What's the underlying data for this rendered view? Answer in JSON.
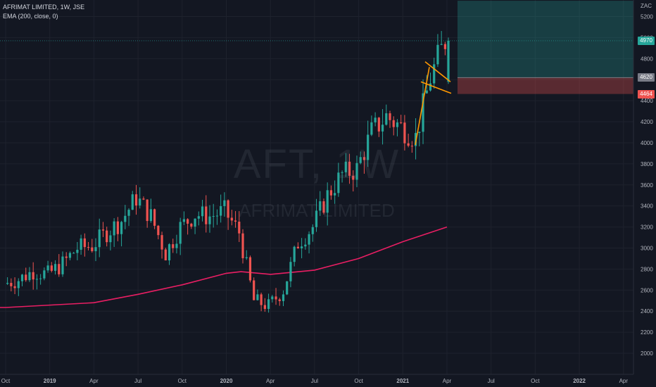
{
  "legend": {
    "symbol": "AFRIMAT LIMITED, 1W, JSE",
    "indicator": "EMA (200, close, 0)"
  },
  "watermark": {
    "ticker": "AFT, 1W",
    "name": "AFRIMAT LIMITED"
  },
  "currency": "ZAC",
  "badges": [
    {
      "label": "4970",
      "color": "#26a69a"
    },
    {
      "label": "4620",
      "color": "#787b86"
    },
    {
      "label": "4464",
      "color": "#ef5350"
    }
  ],
  "colors": {
    "up": "#26a69a",
    "down": "#ef5350",
    "ema": "#e91e63",
    "trendline": "#ff9800",
    "target_zone": "#26a69a",
    "stop_zone": "#ef5350"
  },
  "chart_data": {
    "type": "candlestick",
    "interval": "1W",
    "ylim": [
      1850,
      5350
    ],
    "y_ticks": [
      2000,
      2200,
      2400,
      2600,
      2800,
      3000,
      3200,
      3400,
      3600,
      3800,
      4000,
      4200,
      4400,
      4600,
      4800,
      5000,
      5200
    ],
    "x_ticks": [
      "Oct",
      "2019",
      "Apr",
      "Jul",
      "Oct",
      "2020",
      "Apr",
      "Jul",
      "Oct",
      "2021",
      "Apr",
      "Jul",
      "Oct",
      "2022",
      "Apr"
    ],
    "close_series": [
      {
        "date": "2018-10",
        "close": 2660
      },
      {
        "date": "2018-11",
        "close": 2700
      },
      {
        "date": "2018-12",
        "close": 2780
      },
      {
        "date": "2019-01",
        "close": 2750
      },
      {
        "date": "2019-02",
        "close": 2850
      },
      {
        "date": "2019-03",
        "close": 3000
      },
      {
        "date": "2019-04",
        "close": 3020
      },
      {
        "date": "2019-05",
        "close": 3150
      },
      {
        "date": "2019-06",
        "close": 3260
      },
      {
        "date": "2019-07",
        "close": 3480
      },
      {
        "date": "2019-08",
        "close": 3300
      },
      {
        "date": "2019-09",
        "close": 2950
      },
      {
        "date": "2019-10",
        "close": 3200
      },
      {
        "date": "2019-11",
        "close": 3320
      },
      {
        "date": "2019-12",
        "close": 3300
      },
      {
        "date": "2020-01",
        "close": 3350
      },
      {
        "date": "2020-02",
        "close": 3150
      },
      {
        "date": "2020-03",
        "close": 2500
      },
      {
        "date": "2020-04",
        "close": 2450
      },
      {
        "date": "2020-05",
        "close": 2600
      },
      {
        "date": "2020-06",
        "close": 3050
      },
      {
        "date": "2020-07",
        "close": 3200
      },
      {
        "date": "2020-08",
        "close": 3500
      },
      {
        "date": "2020-09",
        "close": 3700
      },
      {
        "date": "2020-10",
        "close": 3750
      },
      {
        "date": "2020-11",
        "close": 4100
      },
      {
        "date": "2020-12",
        "close": 4250
      },
      {
        "date": "2021-01",
        "close": 4150
      },
      {
        "date": "2021-02",
        "close": 4050
      },
      {
        "date": "2021-03",
        "close": 4620
      },
      {
        "date": "2021-04",
        "close": 4970
      }
    ],
    "ema_200": [
      {
        "date": "2018-10",
        "value": 2435
      },
      {
        "date": "2019-04",
        "value": 2480
      },
      {
        "date": "2019-07",
        "value": 2560
      },
      {
        "date": "2019-10",
        "value": 2650
      },
      {
        "date": "2020-01",
        "value": 2760
      },
      {
        "date": "2020-02",
        "value": 2775
      },
      {
        "date": "2020-04",
        "value": 2750
      },
      {
        "date": "2020-07",
        "value": 2790
      },
      {
        "date": "2020-10",
        "value": 2900
      },
      {
        "date": "2021-01",
        "value": 3060
      },
      {
        "date": "2021-04",
        "value": 3200
      }
    ],
    "levels": {
      "last": 4970,
      "entry": 4620,
      "stop": 4464,
      "target_top": 5350
    }
  }
}
